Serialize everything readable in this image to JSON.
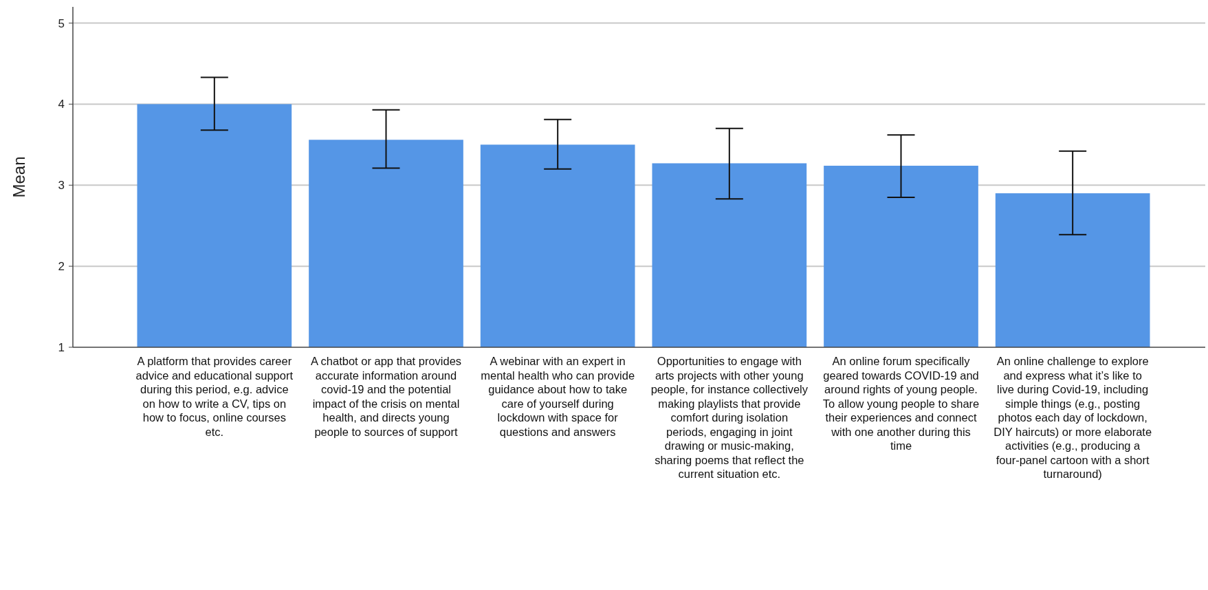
{
  "chart_data": {
    "type": "bar",
    "ylabel": "Mean",
    "categories": [
      "A platform that provides career advice and educational support during this period, e.g. advice on how to write a CV, tips on how to focus, online courses etc.",
      "A chatbot or app that provides accurate information around covid-19 and the potential impact of the crisis on mental health, and directs young people to sources of support",
      "A webinar with an expert in mental health who can provide guidance about how to take care of yourself during lockdown with space for questions and answers",
      "Opportunities to engage with arts projects with other young people, for instance collectively making playlists that provide comfort during isolation periods, engaging in joint drawing or music-making, sharing poems that reflect the current situation etc.",
      "An online forum specifically geared towards COVID-19 and around rights of young people. To allow young people to share their experiences and connect with one another during this time",
      "An online challenge to explore and express what it’s like to live during Covid-19, including simple things (e.g., posting photos each day of lockdown, DIY haircuts) or more elaborate activities (e.g., producing a four-panel cartoon with a short turnaround)"
    ],
    "values": [
      4.0,
      3.56,
      3.5,
      3.27,
      3.24,
      2.9
    ],
    "errors": [
      [
        3.68,
        4.33
      ],
      [
        3.21,
        3.93
      ],
      [
        3.2,
        3.81
      ],
      [
        2.83,
        3.7
      ],
      [
        2.85,
        3.62
      ],
      [
        2.39,
        3.42
      ]
    ],
    "color": "#5596e6",
    "ylim": [
      1,
      5.2
    ],
    "yticks": [
      1,
      2,
      3,
      4,
      5
    ],
    "grid": "y"
  }
}
